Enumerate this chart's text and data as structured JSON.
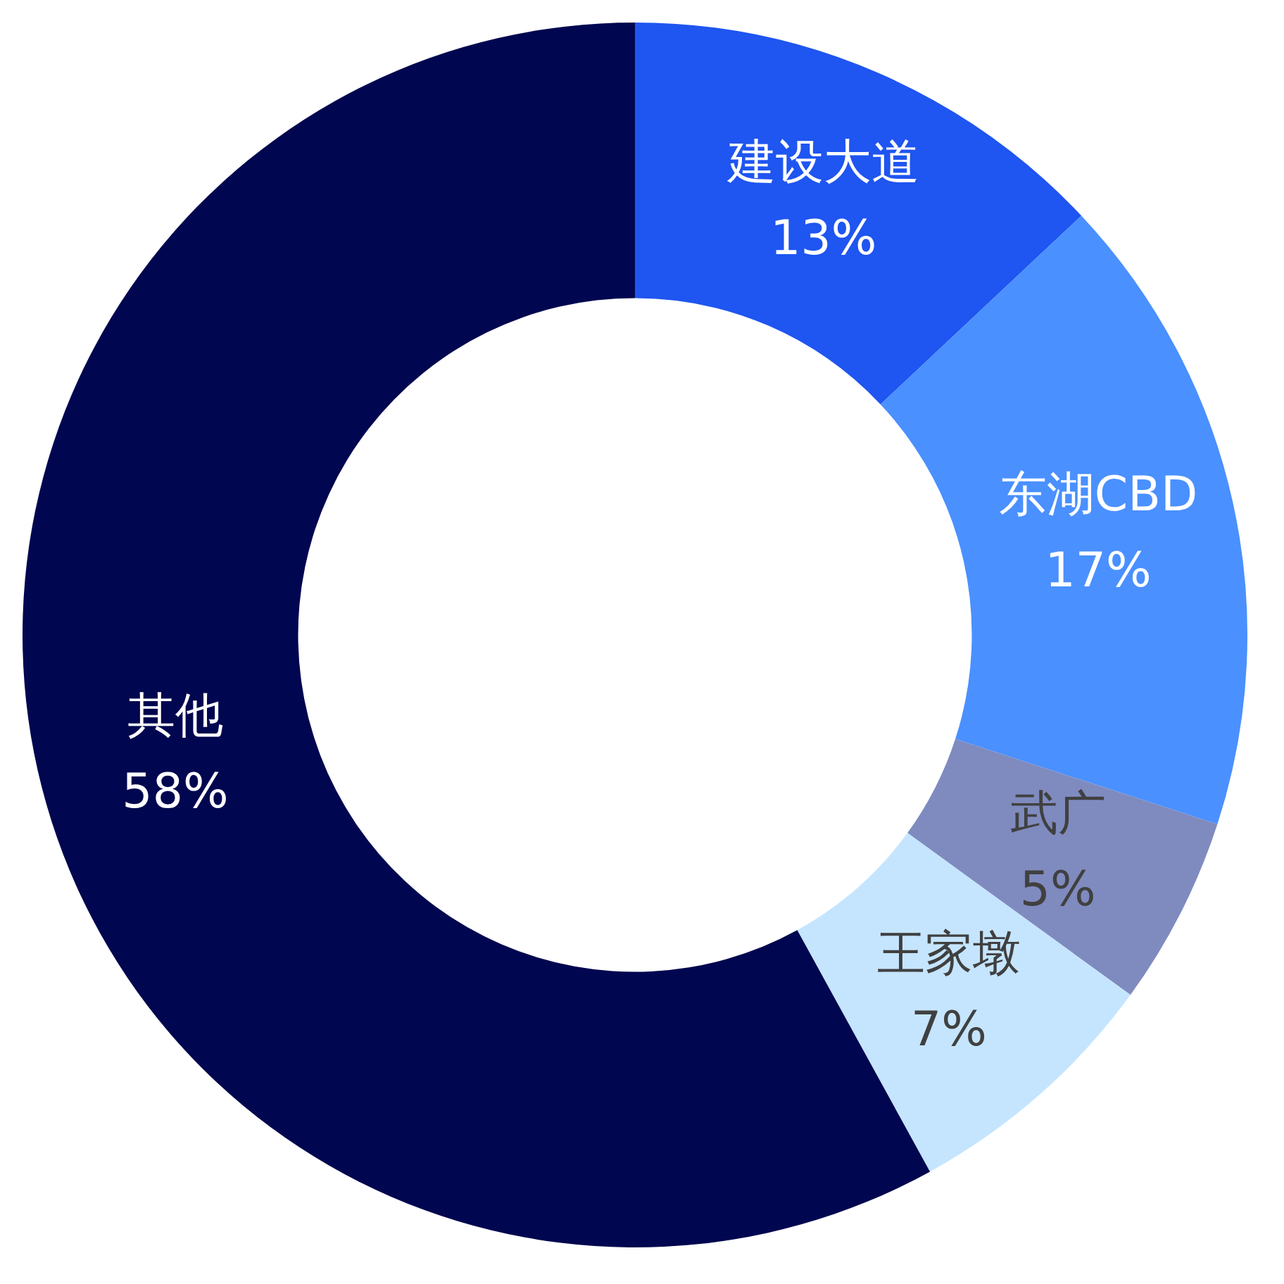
{
  "chart_data": {
    "type": "donut",
    "categories": [
      "建设大道",
      "东湖CBD",
      "武广",
      "王家墩",
      "其他"
    ],
    "values": [
      13,
      17,
      5,
      7,
      58
    ],
    "colors": [
      "#1f55f0",
      "#4a90ff",
      "#7f8bbf",
      "#c5e5ff",
      "#00064f"
    ],
    "value_labels": [
      "13%",
      "17%",
      "5%",
      "7%",
      "58%"
    ],
    "legend": false
  }
}
